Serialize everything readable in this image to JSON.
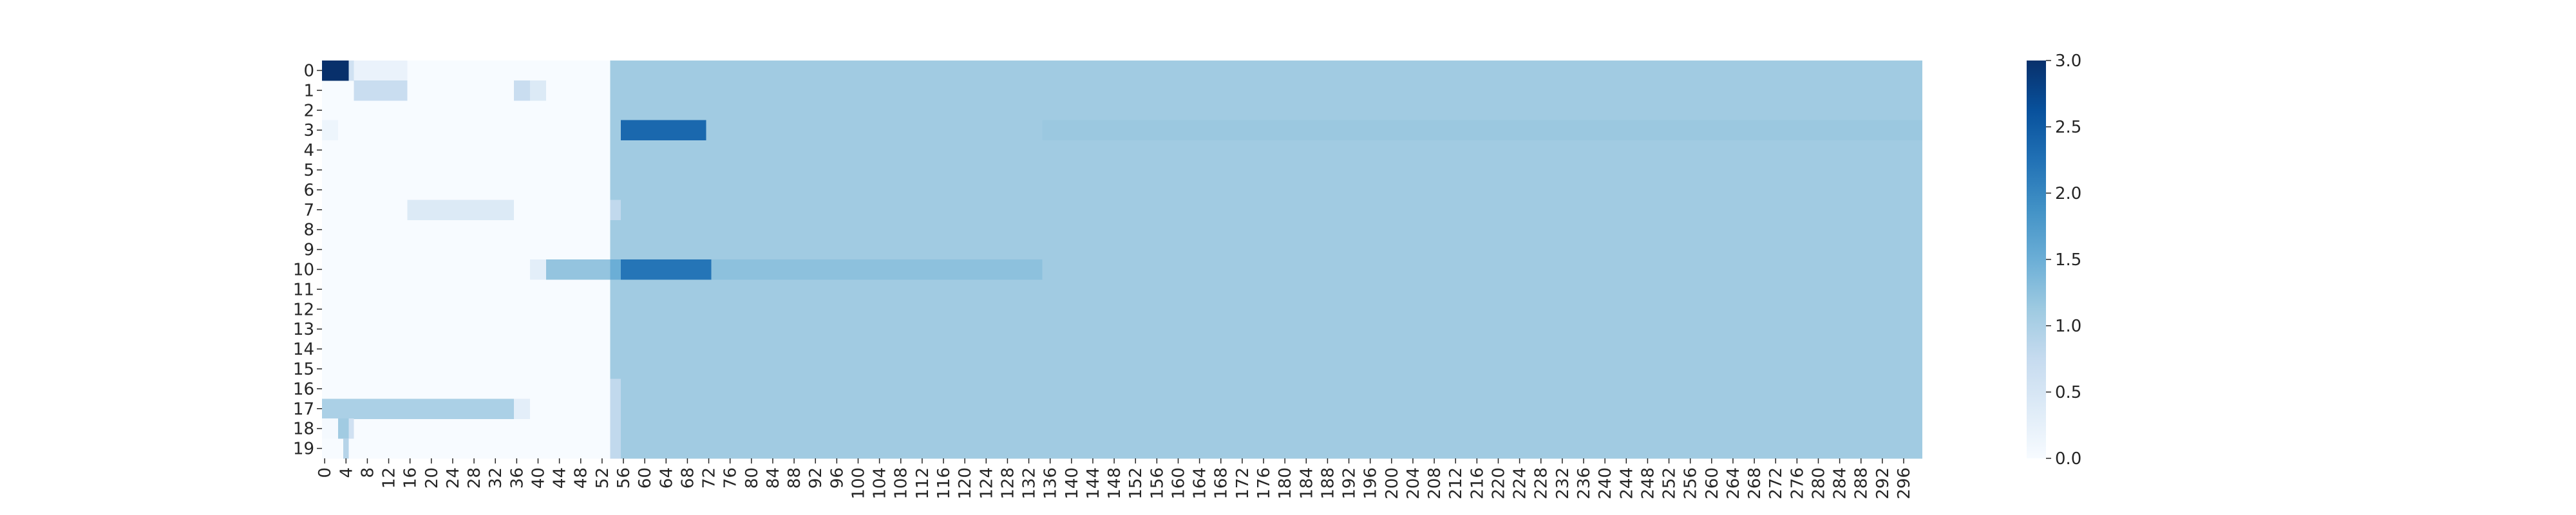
{
  "chart_data": {
    "type": "heatmap",
    "rows": [
      "0",
      "1",
      "2",
      "3",
      "4",
      "5",
      "6",
      "7",
      "8",
      "9",
      "10",
      "11",
      "12",
      "13",
      "14",
      "15",
      "16",
      "17",
      "18",
      "19"
    ],
    "x_range": [
      0,
      299
    ],
    "x_tick_step": 4,
    "colormap": [
      "#f7fbff",
      "#deebf7",
      "#c6dbef",
      "#9ecae1",
      "#6baed6",
      "#4292c6",
      "#2171b5",
      "#08519c",
      "#08306b"
    ],
    "vmin": 0,
    "vmax": 3,
    "background_value": 0,
    "default_value_from_col": 54,
    "default_value_after": 1.1,
    "colorbar_ticks": [
      "0.0",
      "0.5",
      "1.0",
      "1.5",
      "2.0",
      "2.5",
      "3.0"
    ],
    "segments": [
      {
        "row": 0,
        "start": 0,
        "end": 4,
        "value": 3.0
      },
      {
        "row": 0,
        "start": 5,
        "end": 5,
        "value": 0.6
      },
      {
        "row": 0,
        "start": 6,
        "end": 15,
        "value": 0.2
      },
      {
        "row": 1,
        "start": 6,
        "end": 15,
        "value": 0.7
      },
      {
        "row": 1,
        "start": 36,
        "end": 38,
        "value": 0.7
      },
      {
        "row": 1,
        "start": 39,
        "end": 41,
        "value": 0.4
      },
      {
        "row": 3,
        "start": 0,
        "end": 2,
        "value": 0.15
      },
      {
        "row": 3,
        "start": 56,
        "end": 71,
        "value": 2.35
      },
      {
        "row": 3,
        "start": 135,
        "end": 299,
        "value": 1.15
      },
      {
        "row": 7,
        "start": 16,
        "end": 35,
        "value": 0.4
      },
      {
        "row": 10,
        "start": 39,
        "end": 41,
        "value": 0.3
      },
      {
        "row": 10,
        "start": 42,
        "end": 53,
        "value": 1.2
      },
      {
        "row": 10,
        "start": 54,
        "end": 55,
        "value": 1.5
      },
      {
        "row": 10,
        "start": 56,
        "end": 72,
        "value": 2.2
      },
      {
        "row": 10,
        "start": 73,
        "end": 134,
        "value": 1.25
      },
      {
        "row": 17,
        "start": 0,
        "end": 35,
        "value": 1.0
      },
      {
        "row": 17,
        "start": 36,
        "end": 38,
        "value": 0.3
      },
      {
        "row": 18,
        "start": 0,
        "end": 2,
        "value": 0.05
      },
      {
        "row": 18,
        "start": 3,
        "end": 4,
        "value": 1.1
      },
      {
        "row": 18,
        "start": 5,
        "end": 5,
        "value": 0.6
      },
      {
        "row": 19,
        "start": 4,
        "end": 4,
        "value": 0.9
      },
      {
        "row": 7,
        "start": 54,
        "end": 55,
        "value": 0.8
      },
      {
        "row": 16,
        "start": 54,
        "end": 55,
        "value": 0.8
      },
      {
        "row": 17,
        "start": 54,
        "end": 55,
        "value": 0.8
      },
      {
        "row": 18,
        "start": 54,
        "end": 55,
        "value": 0.8
      },
      {
        "row": 19,
        "start": 54,
        "end": 55,
        "value": 0.8
      }
    ]
  }
}
